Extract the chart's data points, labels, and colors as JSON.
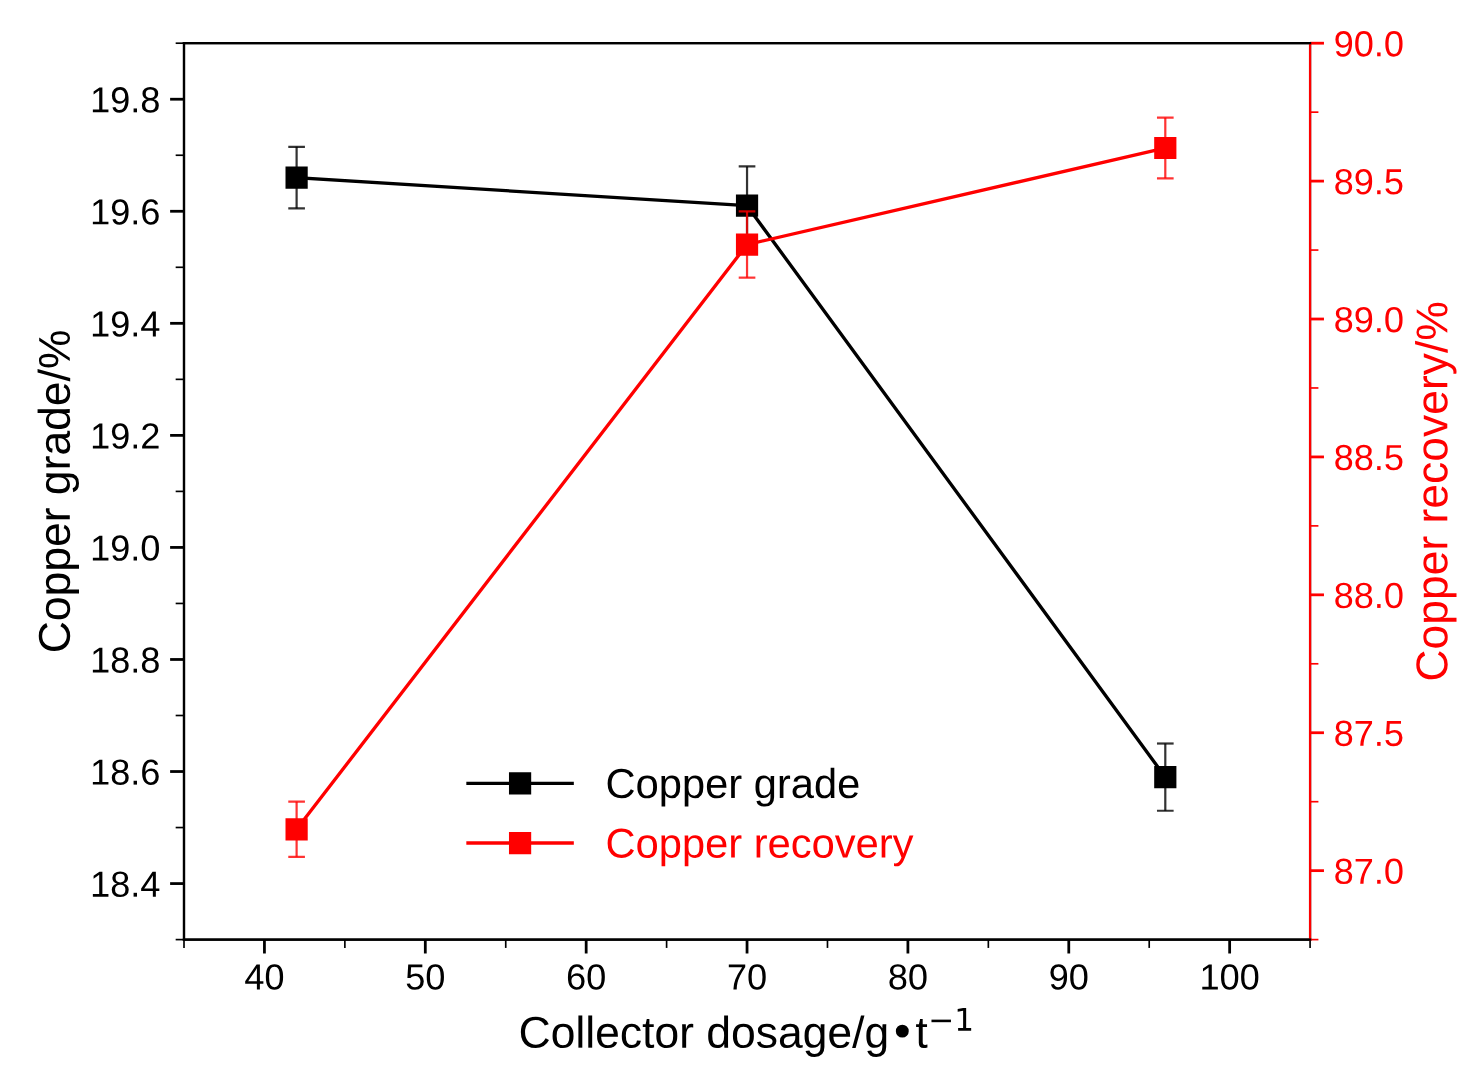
{
  "chart_data": {
    "type": "line",
    "xlabel": "Collector dosage/g•t$^{−1}$",
    "ylabel": "Copper grade/%",
    "y2label": "Copper recovery/%",
    "x": [
      42,
      70,
      96
    ],
    "series": [
      {
        "name": "Copper grade",
        "color": "#000000",
        "values": [
          19.66,
          19.61,
          18.59
        ],
        "errors": [
          0.055,
          0.07,
          0.06
        ]
      },
      {
        "name": "Copper recovery",
        "color": "#ff0000",
        "axis": "y2",
        "values": [
          87.15,
          89.27,
          89.62
        ],
        "errors": [
          0.1,
          0.12,
          0.11
        ]
      }
    ],
    "xlim": [
      35,
      105
    ],
    "xticks": [
      40,
      50,
      60,
      70,
      80,
      90,
      100
    ],
    "ylim": [
      18.3,
      19.9
    ],
    "yticks": [
      18.4,
      18.6,
      18.8,
      {
        "value": 19,
        "label": "19.0"
      },
      19.2,
      19.4,
      19.6,
      19.8
    ],
    "y2lim": [
      86.75,
      90.0
    ],
    "y2ticks": [
      {
        "value": 87,
        "label": "87.0"
      },
      87.5,
      {
        "value": 88,
        "label": "88.0"
      },
      88.5,
      {
        "value": 89,
        "label": "89.0"
      },
      89.5,
      {
        "value": 90,
        "label": "90.0"
      }
    ],
    "marker": "square",
    "line_style": "solid",
    "legend": "bottom",
    "grid": false
  }
}
